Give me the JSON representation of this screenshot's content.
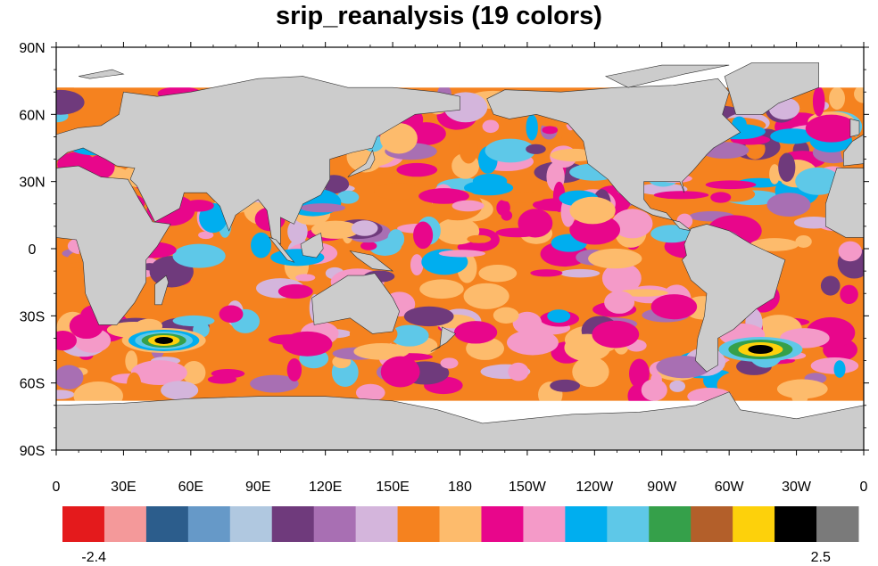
{
  "title": "srip_reanalysis (19 colors)",
  "map": {
    "projection": "cylindrical-equidistant",
    "lon_range": [
      0,
      360
    ],
    "lat_range": [
      -90,
      90
    ],
    "land_color": "#cccccc",
    "ocean_missing_color": "#ffffff",
    "lat_ticks": [
      {
        "lat": 90,
        "label": "90N"
      },
      {
        "lat": 60,
        "label": "60N"
      },
      {
        "lat": 30,
        "label": "30N"
      },
      {
        "lat": 0,
        "label": "0"
      },
      {
        "lat": -30,
        "label": "30S"
      },
      {
        "lat": -60,
        "label": "60S"
      },
      {
        "lat": -90,
        "label": "90S"
      }
    ],
    "lon_ticks": [
      {
        "lon": 0,
        "label": "0"
      },
      {
        "lon": 30,
        "label": "30E"
      },
      {
        "lon": 60,
        "label": "60E"
      },
      {
        "lon": 90,
        "label": "90E"
      },
      {
        "lon": 120,
        "label": "120E"
      },
      {
        "lon": 150,
        "label": "150E"
      },
      {
        "lon": 180,
        "label": "180"
      },
      {
        "lon": 210,
        "label": "150W"
      },
      {
        "lon": 240,
        "label": "120W"
      },
      {
        "lon": 270,
        "label": "90W"
      },
      {
        "lon": 300,
        "label": "60W"
      },
      {
        "lon": 330,
        "label": "30W"
      },
      {
        "lon": 360,
        "label": "0"
      }
    ]
  },
  "colorbar": {
    "colors": [
      "#e41a1c",
      "#f4999a",
      "#2c5d8c",
      "#6699c8",
      "#b0c8e0",
      "#6f3a7c",
      "#a86fb3",
      "#d4b5dc",
      "#f5821f",
      "#fdbb6c",
      "#e8068b",
      "#f49ac8",
      "#00aeef",
      "#5ec8e8",
      "#35a04a",
      "#b35f2a",
      "#fdd10b",
      "#000000",
      "#7a7a7a"
    ],
    "labels": [
      {
        "text": "-2.4",
        "end": "left"
      },
      {
        "text": "2.5",
        "end": "right"
      }
    ]
  }
}
